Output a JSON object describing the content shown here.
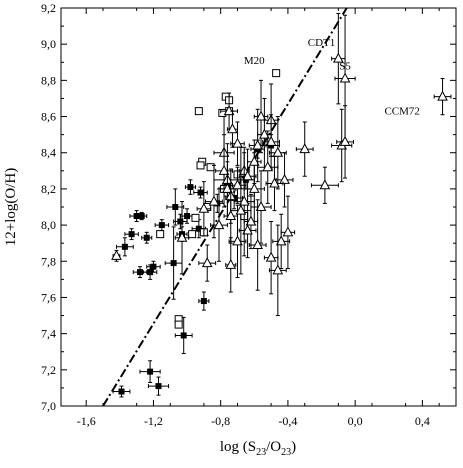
{
  "chart_data": {
    "type": "scatter",
    "title": "",
    "xlabel_main": "log (S",
    "xlabel_sub1": "23",
    "xlabel_mid": "/O",
    "xlabel_sub2": "23",
    "xlabel_close": ")",
    "ylabel": "12+log(O/H)",
    "xlim": [
      -1.75,
      0.6
    ],
    "ylim": [
      7.0,
      9.2
    ],
    "xticks": [
      -1.6,
      -1.2,
      -0.8,
      -0.4,
      0.0,
      0.4
    ],
    "xtick_labels": [
      "-1,6",
      "-1,2",
      "-0,8",
      "-0,4",
      "0,0",
      "0,4"
    ],
    "yticks": [
      7.0,
      7.2,
      7.4,
      7.6,
      7.8,
      8.0,
      8.2,
      8.4,
      8.6,
      8.8,
      9.0,
      9.2
    ],
    "ytick_labels": [
      "7,0",
      "7,2",
      "7,4",
      "7,6",
      "7,8",
      "8,0",
      "8,2",
      "8,4",
      "8,6",
      "8,8",
      "9,0",
      "9,2"
    ],
    "grid": false,
    "fit_line": {
      "style": "dash-dot",
      "points": [
        [
          -1.5,
          7.0
        ],
        [
          -0.05,
          9.2
        ]
      ]
    },
    "annotations": [
      {
        "text": "CDT1",
        "x": -0.2,
        "y": 8.99
      },
      {
        "text": "S5",
        "x": -0.06,
        "y": 8.86
      },
      {
        "text": "M20",
        "x": -0.6,
        "y": 8.89
      },
      {
        "text": "CCM72",
        "x": 0.28,
        "y": 8.61
      }
    ],
    "series": [
      {
        "marker": "filled-square",
        "points": [
          [
            -1.39,
            7.08,
            0.05,
            0.03
          ],
          [
            -1.22,
            7.19,
            0.06,
            0.06
          ],
          [
            -1.17,
            7.11,
            0.06,
            0.05
          ],
          [
            -1.02,
            7.39,
            0.05,
            0.1
          ],
          [
            -0.9,
            7.58,
            0.03,
            0.05
          ],
          [
            -1.08,
            7.79,
            0.05,
            0.2
          ],
          [
            -1.22,
            7.74,
            0.04,
            0.04
          ],
          [
            -1.28,
            7.74,
            0.04,
            0.03
          ],
          [
            -1.2,
            7.77,
            0.04,
            0.03
          ],
          [
            -1.37,
            7.88,
            0.05,
            0.05
          ],
          [
            -1.33,
            7.95,
            0.04,
            0.03
          ],
          [
            -1.24,
            7.93,
            0.03,
            0.03
          ],
          [
            -1.3,
            8.05,
            0.04,
            0.03
          ],
          [
            -1.27,
            8.05,
            0.03,
            0.02
          ],
          [
            -1.15,
            8.0,
            0.04,
            0.03
          ],
          [
            -1.07,
            8.1,
            0.05,
            0.1
          ],
          [
            -1.04,
            8.02,
            0.04,
            0.04
          ],
          [
            -0.98,
            8.21,
            0.03,
            0.04
          ],
          [
            -0.93,
            7.98,
            0.04,
            0.05
          ],
          [
            -0.92,
            8.18,
            0.04,
            0.03
          ],
          [
            -1.03,
            7.95,
            0.03,
            0.04
          ],
          [
            -0.82,
            8.12,
            0.04,
            0.05
          ],
          [
            -0.76,
            8.22,
            0.03,
            0.04
          ],
          [
            -0.72,
            8.15,
            0.05,
            0.06
          ],
          [
            -0.65,
            8.25,
            0.05,
            0.05
          ],
          [
            -0.58,
            8.42,
            0.04,
            0.05
          ],
          [
            -0.5,
            8.44,
            0.05,
            0.06
          ],
          [
            -1.0,
            8.05,
            0.04,
            0.04
          ]
        ]
      },
      {
        "marker": "open-square",
        "points": [
          [
            -0.47,
            8.84,
            0.0,
            0.0
          ],
          [
            -0.77,
            8.71,
            0.0,
            0.0
          ],
          [
            -0.75,
            8.69,
            0.0,
            0.0
          ],
          [
            -0.75,
            8.63,
            0.0,
            0.0
          ],
          [
            -0.79,
            8.62,
            0.0,
            0.0
          ],
          [
            -0.93,
            8.63,
            0.0,
            0.0
          ],
          [
            -0.91,
            8.35,
            0.0,
            0.0
          ],
          [
            -0.92,
            8.33,
            0.0,
            0.0
          ],
          [
            -0.86,
            8.32,
            0.0,
            0.0
          ],
          [
            -0.88,
            8.1,
            0.0,
            0.0
          ],
          [
            -0.95,
            8.04,
            0.0,
            0.0
          ],
          [
            -0.97,
            7.95,
            0.0,
            0.0
          ],
          [
            -0.9,
            7.96,
            0.0,
            0.0
          ],
          [
            -1.16,
            7.95,
            0.0,
            0.0
          ],
          [
            -1.05,
            7.48,
            0.0,
            0.0
          ],
          [
            -1.05,
            7.45,
            0.0,
            0.0
          ],
          [
            -0.7,
            8.28,
            0.0,
            0.0
          ],
          [
            -0.66,
            8.05,
            0.0,
            0.0
          ],
          [
            -0.78,
            8.2,
            0.0,
            0.0
          ],
          [
            -0.62,
            8.18,
            0.0,
            0.0
          ]
        ]
      },
      {
        "marker": "open-triangle",
        "points": [
          [
            -1.42,
            7.83,
            0.02,
            0.03
          ],
          [
            -1.03,
            7.93,
            0.04,
            0.2
          ],
          [
            -0.88,
            7.79,
            0.05,
            0.1
          ],
          [
            -0.74,
            7.78,
            0.03,
            0.15
          ],
          [
            -0.75,
            8.63,
            0.05,
            0.1
          ],
          [
            -0.73,
            8.53,
            0.03,
            0.1
          ],
          [
            -0.7,
            8.45,
            0.04,
            0.12
          ],
          [
            -0.78,
            8.4,
            0.06,
            0.2
          ],
          [
            -0.78,
            8.3,
            0.05,
            0.2
          ],
          [
            -0.76,
            8.25,
            0.08,
            0.2
          ],
          [
            -0.76,
            8.2,
            0.05,
            0.15
          ],
          [
            -0.74,
            8.16,
            0.04,
            0.15
          ],
          [
            -0.74,
            8.05,
            0.04,
            0.15
          ],
          [
            -0.7,
            7.91,
            0.05,
            0.2
          ],
          [
            -0.7,
            8.22,
            0.05,
            0.1
          ],
          [
            -0.66,
            8.3,
            0.03,
            0.1
          ],
          [
            -0.64,
            8.27,
            0.05,
            0.15
          ],
          [
            -0.6,
            8.2,
            0.06,
            0.2
          ],
          [
            -0.6,
            8.35,
            0.04,
            0.12
          ],
          [
            -0.58,
            8.44,
            0.05,
            0.2
          ],
          [
            -0.56,
            8.6,
            0.04,
            0.2
          ],
          [
            -0.54,
            8.5,
            0.04,
            0.2
          ],
          [
            -0.5,
            8.58,
            0.04,
            0.2
          ],
          [
            -0.5,
            8.46,
            0.05,
            0.15
          ],
          [
            -0.46,
            8.4,
            0.05,
            0.2
          ],
          [
            -0.42,
            8.25,
            0.05,
            0.15
          ],
          [
            -0.48,
            8.23,
            0.05,
            0.15
          ],
          [
            -0.56,
            8.1,
            0.06,
            0.2
          ],
          [
            -0.62,
            8.02,
            0.04,
            0.15
          ],
          [
            -0.64,
            7.97,
            0.05,
            0.15
          ],
          [
            -0.58,
            7.89,
            0.05,
            0.25
          ],
          [
            -0.5,
            7.82,
            0.04,
            0.2
          ],
          [
            -0.44,
            7.91,
            0.05,
            0.15
          ],
          [
            -0.4,
            7.96,
            0.04,
            0.2
          ],
          [
            -0.46,
            7.75,
            0.05,
            0.25
          ],
          [
            -0.3,
            8.42,
            0.05,
            0.15
          ],
          [
            -0.1,
            8.92,
            0.04,
            0.25
          ],
          [
            -0.06,
            8.81,
            0.06,
            0.35
          ],
          [
            -0.08,
            8.44,
            0.06,
            0.2
          ],
          [
            -0.06,
            8.46,
            0.05,
            0.2
          ],
          [
            -0.18,
            8.22,
            0.08,
            0.1
          ],
          [
            0.52,
            8.71,
            0.05,
            0.1
          ],
          [
            -0.84,
            8.13,
            0.05,
            0.2
          ],
          [
            -0.9,
            8.09,
            0.04,
            0.15
          ],
          [
            -0.81,
            8.0,
            0.05,
            0.2
          ],
          [
            -0.66,
            8.13,
            0.06,
            0.3
          ],
          [
            -0.52,
            8.32,
            0.06,
            0.2
          ],
          [
            -0.68,
            8.08,
            0.06,
            0.35
          ]
        ]
      }
    ]
  }
}
